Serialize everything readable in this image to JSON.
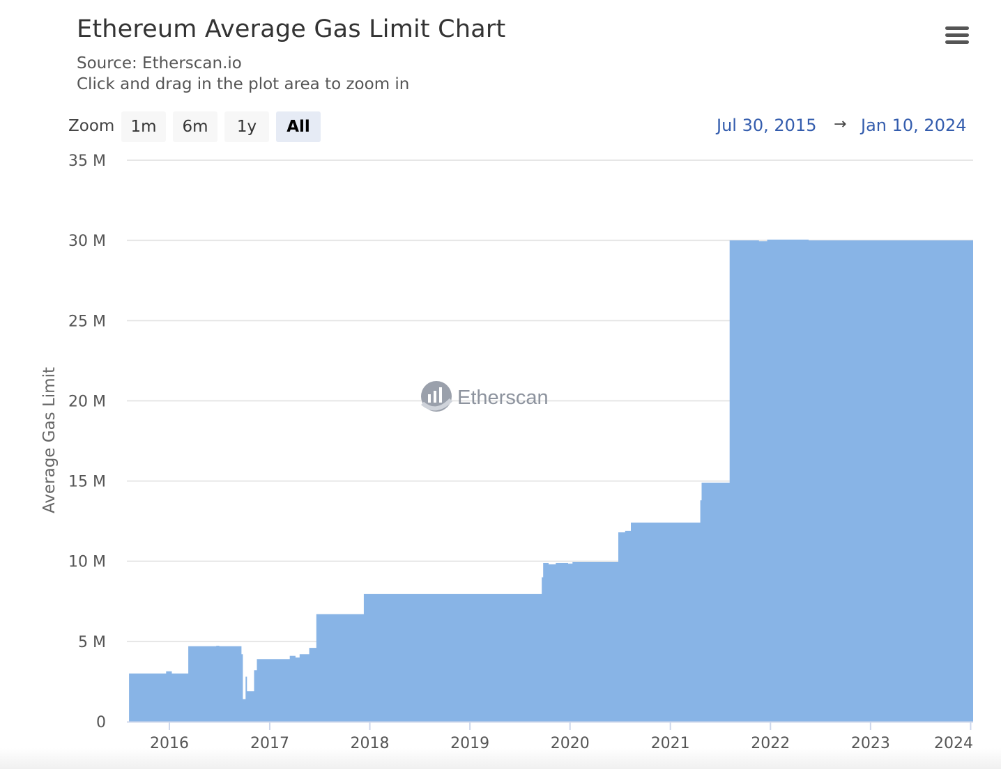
{
  "header": {
    "title": "Ethereum Average Gas Limit Chart",
    "source": "Source: Etherscan.io",
    "hint": "Click and drag in the plot area to zoom in",
    "menu_icon": "hamburger-menu-icon"
  },
  "zoom": {
    "label": "Zoom",
    "buttons": [
      "1m",
      "6m",
      "1y",
      "All"
    ],
    "active": "All"
  },
  "range": {
    "from": "Jul 30, 2015",
    "arrow": "→",
    "to": "Jan 10, 2024"
  },
  "watermark": "Etherscan",
  "colors": {
    "area": "#88b4e6",
    "grid": "#e6e6e6",
    "range_text": "#335cad"
  },
  "chart_data": {
    "type": "area",
    "ylabel": "Average Gas Limit",
    "xlabel": "",
    "ylim": [
      0,
      35000000
    ],
    "xlim": [
      "2015-07-30",
      "2024-01-10"
    ],
    "y_ticks": [
      "0",
      "5 M",
      "10 M",
      "15 M",
      "20 M",
      "25 M",
      "30 M",
      "35 M"
    ],
    "x_ticks": [
      "2016",
      "2017",
      "2018",
      "2019",
      "2020",
      "2021",
      "2022",
      "2023",
      "2024"
    ],
    "grid": true,
    "legend": "none",
    "series": [
      {
        "values": [
          [
            "2015-08-07",
            3000000
          ],
          [
            "2015-12-20",
            3140000
          ],
          [
            "2016-01-10",
            3000000
          ],
          [
            "2016-03-10",
            4700000
          ],
          [
            "2016-06-20",
            4730000
          ],
          [
            "2016-07-01",
            4700000
          ],
          [
            "2016-09-20",
            4200000
          ],
          [
            "2016-09-25",
            1400000
          ],
          [
            "2016-10-05",
            2800000
          ],
          [
            "2016-10-10",
            1900000
          ],
          [
            "2016-11-05",
            3200000
          ],
          [
            "2016-11-15",
            3900000
          ],
          [
            "2017-03-15",
            4100000
          ],
          [
            "2017-04-05",
            4000000
          ],
          [
            "2017-04-20",
            4200000
          ],
          [
            "2017-05-25",
            4600000
          ],
          [
            "2017-06-20",
            6700000
          ],
          [
            "2017-12-10",
            7950000
          ],
          [
            "2019-09-20",
            9000000
          ],
          [
            "2019-09-25",
            9900000
          ],
          [
            "2019-10-15",
            9800000
          ],
          [
            "2019-11-10",
            9900000
          ],
          [
            "2019-12-25",
            9850000
          ],
          [
            "2020-01-10",
            9950000
          ],
          [
            "2020-06-25",
            11800000
          ],
          [
            "2020-07-20",
            11900000
          ],
          [
            "2020-08-10",
            12400000
          ],
          [
            "2021-04-20",
            13800000
          ],
          [
            "2021-04-25",
            14900000
          ],
          [
            "2021-08-05",
            30000000
          ],
          [
            "2021-11-20",
            29950000
          ],
          [
            "2021-12-20",
            30050000
          ],
          [
            "2022-05-20",
            30000000
          ],
          [
            "2024-01-10",
            30000000
          ]
        ]
      }
    ]
  }
}
